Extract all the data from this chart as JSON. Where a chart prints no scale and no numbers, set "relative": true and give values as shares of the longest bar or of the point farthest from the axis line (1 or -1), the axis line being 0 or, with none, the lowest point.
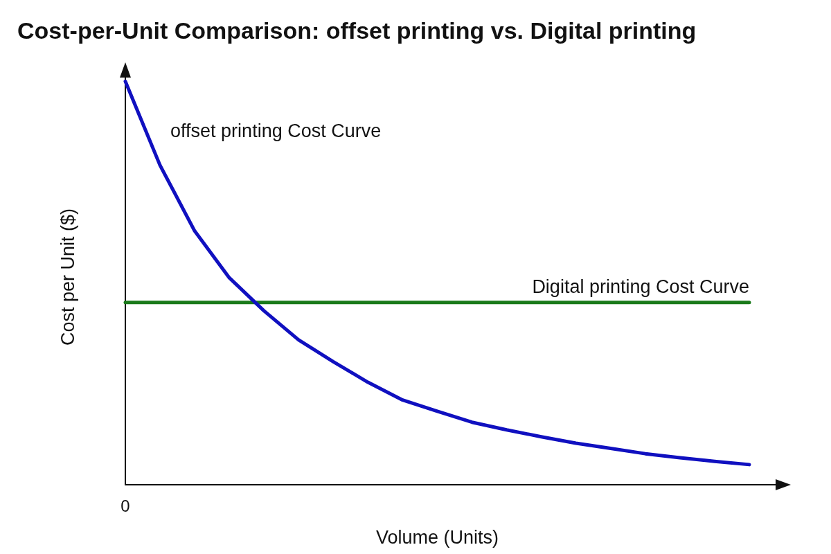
{
  "chart_data": {
    "type": "line",
    "title": "Cost-per-Unit Comparison: offset printing vs. Digital printing",
    "xlabel": "Volume (Units)",
    "ylabel": "Cost per Unit ($)",
    "relative": true,
    "grid": false,
    "legend": false,
    "marker": "none",
    "line_style": "solid",
    "annotations": [
      "0"
    ],
    "categories": [
      null,
      null,
      null,
      null,
      null,
      null,
      null,
      null,
      null,
      null,
      null,
      null,
      null,
      null,
      null,
      null,
      null,
      null,
      null
    ],
    "series": [
      {
        "name": "offset printing Cost Curve",
        "color": "#1010c0",
        "values": [
          1.0,
          0.792,
          0.629,
          0.513,
          0.431,
          0.359,
          0.305,
          0.254,
          0.21,
          0.182,
          0.155,
          0.136,
          0.119,
          0.103,
          0.09,
          0.077,
          0.067,
          0.058,
          0.05
        ]
      },
      {
        "name": "Digital printing Cost Curve",
        "color": "#1a7a1a",
        "values": [
          0.452,
          0.452,
          0.452,
          0.452,
          0.452,
          0.452,
          0.452,
          0.452,
          0.452,
          0.452,
          0.452,
          0.452,
          0.452,
          0.452,
          0.452,
          0.452,
          0.452,
          0.452,
          0.452
        ]
      }
    ]
  }
}
